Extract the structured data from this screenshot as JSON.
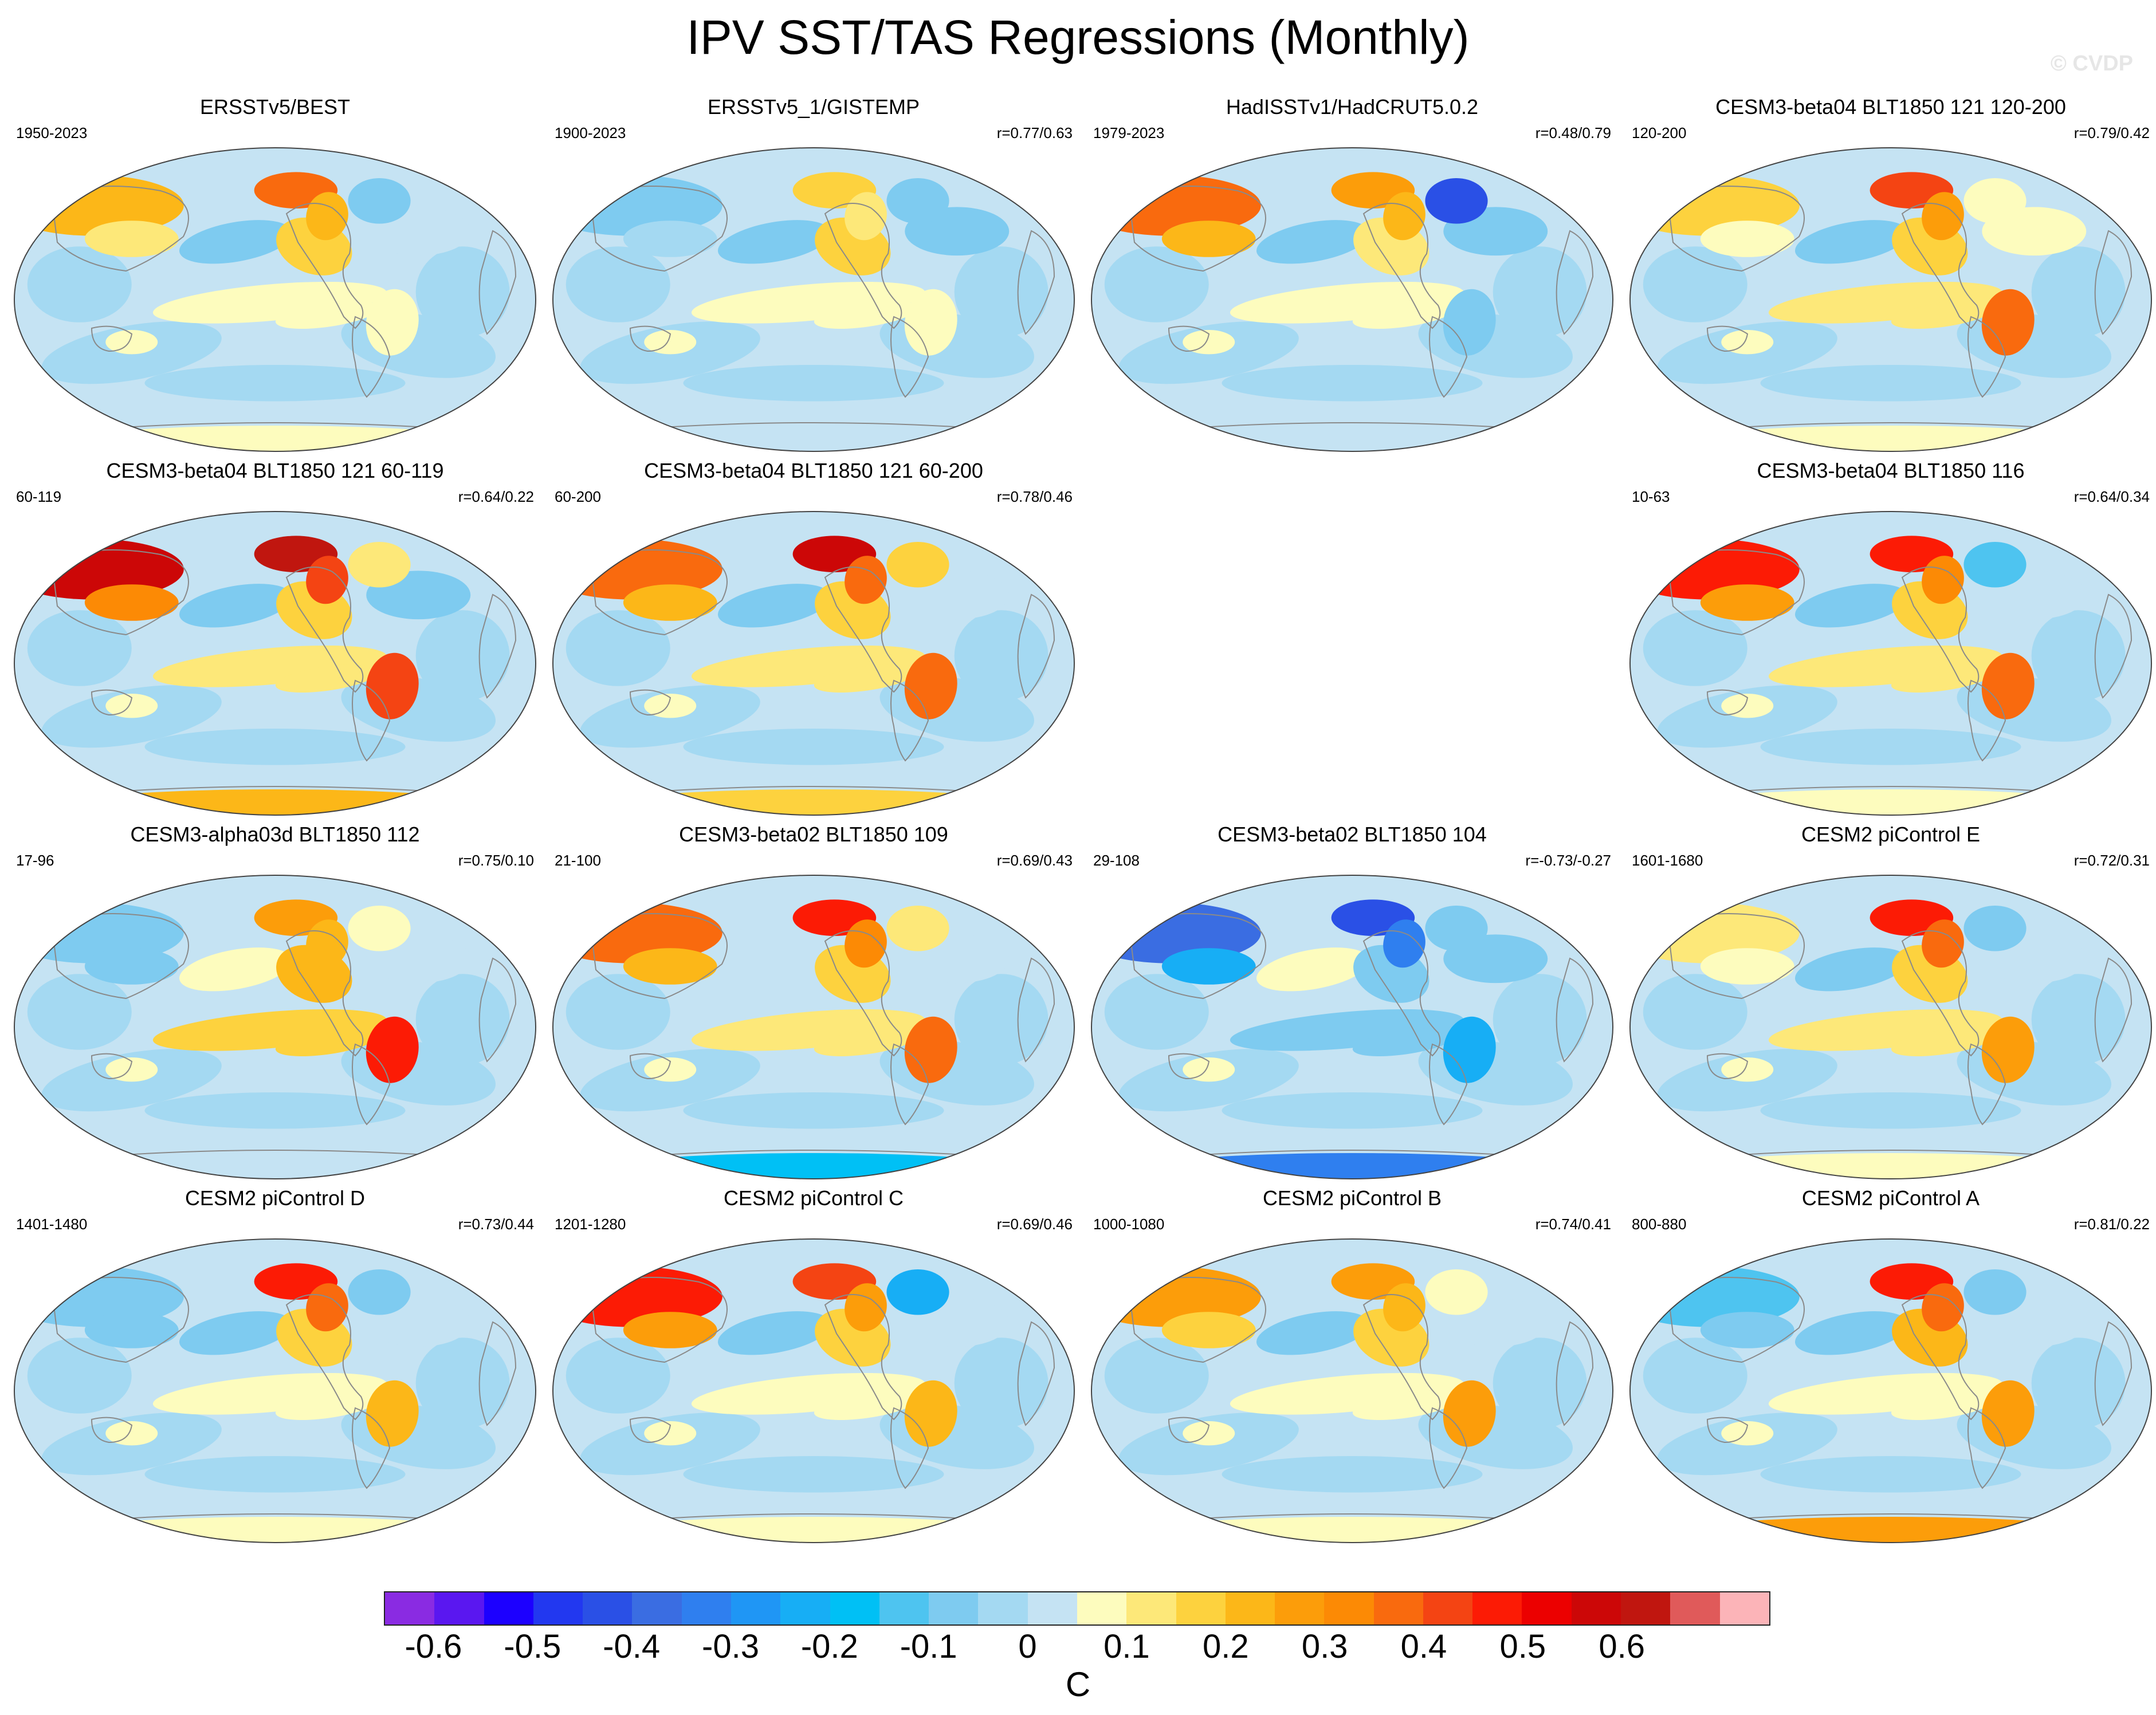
{
  "title": "IPV SST/TAS Regressions (Monthly)",
  "credit": "© CVDP",
  "chart_data": {
    "type": "heatmap",
    "description_unit": "C",
    "panels": [
      {
        "row": 0,
        "col": 0,
        "title": "ERSSTv5/BEST",
        "period": "1950-2023",
        "r": "",
        "pattern": {
          "ne_pacific": 0.15,
          "n_pacific_center": -0.05,
          "trop_pacific": 0.05,
          "n_atlantic": 0.0,
          "s_america": 0.05,
          "eurasia": 0.2,
          "n_america_w": 0.35,
          "n_america_e": -0.1,
          "antarctic": 0.05
        }
      },
      {
        "row": 0,
        "col": 1,
        "title": "ERSSTv5_1/GISTEMP",
        "period": "1900-2023",
        "r": "r=0.77/0.63",
        "pattern": {
          "ne_pacific": 0.15,
          "n_pacific_center": -0.1,
          "trop_pacific": 0.05,
          "n_atlantic": -0.05,
          "s_america": 0.05,
          "eurasia": -0.05,
          "n_america_w": 0.15,
          "n_america_e": -0.1,
          "antarctic": 0.0
        }
      },
      {
        "row": 0,
        "col": 2,
        "title": "HadISSTv1/HadCRUT5.0.2",
        "period": "1979-2023",
        "r": "r=0.48/0.79",
        "pattern": {
          "ne_pacific": 0.1,
          "n_pacific_center": -0.05,
          "trop_pacific": 0.05,
          "n_atlantic": -0.05,
          "s_america": -0.05,
          "eurasia": 0.35,
          "n_america_w": 0.3,
          "n_america_e": -0.45,
          "antarctic": 0.0
        }
      },
      {
        "row": 0,
        "col": 3,
        "title": "CESM3-beta04 BLT1850 121 120-200",
        "period": "120-200",
        "r": "r=0.79/0.42",
        "pattern": {
          "ne_pacific": 0.15,
          "n_pacific_center": -0.05,
          "trop_pacific": 0.1,
          "n_atlantic": 0.05,
          "s_america": 0.35,
          "eurasia": 0.15,
          "n_america_w": 0.4,
          "n_america_e": 0.05,
          "antarctic": 0.05
        }
      },
      {
        "row": 1,
        "col": 0,
        "title": "CESM3-beta04 BLT1850 121 60-119",
        "period": "60-119",
        "r": "r=0.64/0.22",
        "pattern": {
          "ne_pacific": 0.15,
          "n_pacific_center": -0.05,
          "trop_pacific": 0.1,
          "n_atlantic": -0.05,
          "s_america": 0.4,
          "eurasia": 0.55,
          "n_america_w": 0.6,
          "n_america_e": 0.1,
          "antarctic": 0.2
        }
      },
      {
        "row": 1,
        "col": 1,
        "title": "CESM3-beta04 BLT1850 121 60-200",
        "period": "60-200",
        "r": "r=0.78/0.46",
        "pattern": {
          "ne_pacific": 0.15,
          "n_pacific_center": -0.05,
          "trop_pacific": 0.1,
          "n_atlantic": 0.0,
          "s_america": 0.35,
          "eurasia": 0.35,
          "n_america_w": 0.55,
          "n_america_e": 0.15,
          "antarctic": 0.15
        }
      },
      {
        "row": 1,
        "col": 3,
        "title": "CESM3-beta04 BLT1850 116",
        "period": "10-63",
        "r": "r=0.64/0.34",
        "pattern": {
          "ne_pacific": 0.15,
          "n_pacific_center": -0.05,
          "trop_pacific": 0.1,
          "n_atlantic": 0.0,
          "s_america": 0.35,
          "eurasia": 0.45,
          "n_america_w": 0.45,
          "n_america_e": -0.15,
          "antarctic": 0.05
        }
      },
      {
        "row": 2,
        "col": 0,
        "title": "CESM3-alpha03d BLT1850 112",
        "period": "17-96",
        "r": "r=0.75/0.10",
        "pattern": {
          "ne_pacific": 0.2,
          "n_pacific_center": 0.05,
          "trop_pacific": 0.15,
          "n_atlantic": 0.0,
          "s_america": 0.45,
          "eurasia": -0.1,
          "n_america_w": 0.3,
          "n_america_e": 0.05,
          "antarctic": 0.0
        }
      },
      {
        "row": 2,
        "col": 1,
        "title": "CESM3-beta02 BLT1850 109",
        "period": "21-100",
        "r": "r=0.69/0.43",
        "pattern": {
          "ne_pacific": 0.15,
          "n_pacific_center": 0.0,
          "trop_pacific": 0.1,
          "n_atlantic": 0.0,
          "s_america": 0.35,
          "eurasia": 0.35,
          "n_america_w": 0.45,
          "n_america_e": 0.1,
          "antarctic": -0.2
        }
      },
      {
        "row": 2,
        "col": 2,
        "title": "CESM3-beta02 BLT1850 104",
        "period": "29-108",
        "r": "r=-0.73/-0.27",
        "pattern": {
          "ne_pacific": -0.1,
          "n_pacific_center": 0.05,
          "trop_pacific": -0.1,
          "n_atlantic": -0.05,
          "s_america": -0.25,
          "eurasia": -0.4,
          "n_america_w": -0.45,
          "n_america_e": -0.1,
          "antarctic": -0.35
        }
      },
      {
        "row": 2,
        "col": 3,
        "title": "CESM2 piControl E",
        "period": "1601-1680",
        "r": "r=0.72/0.31",
        "pattern": {
          "ne_pacific": 0.15,
          "n_pacific_center": -0.05,
          "trop_pacific": 0.1,
          "n_atlantic": 0.0,
          "s_america": 0.25,
          "eurasia": 0.1,
          "n_america_w": 0.5,
          "n_america_e": -0.1,
          "antarctic": 0.05
        }
      },
      {
        "row": 3,
        "col": 0,
        "title": "CESM2 piControl D",
        "period": "1401-1480",
        "r": "r=0.73/0.44",
        "pattern": {
          "ne_pacific": 0.15,
          "n_pacific_center": -0.05,
          "trop_pacific": 0.05,
          "n_atlantic": 0.0,
          "s_america": 0.2,
          "eurasia": -0.1,
          "n_america_w": 0.5,
          "n_america_e": -0.1,
          "antarctic": 0.05
        }
      },
      {
        "row": 3,
        "col": 1,
        "title": "CESM2 piControl C",
        "period": "1201-1280",
        "r": "r=0.69/0.46",
        "pattern": {
          "ne_pacific": 0.15,
          "n_pacific_center": -0.05,
          "trop_pacific": 0.05,
          "n_atlantic": 0.0,
          "s_america": 0.2,
          "eurasia": 0.45,
          "n_america_w": 0.4,
          "n_america_e": -0.25,
          "antarctic": 0.05
        }
      },
      {
        "row": 3,
        "col": 2,
        "title": "CESM2 piControl B",
        "period": "1000-1080",
        "r": "r=0.74/0.41",
        "pattern": {
          "ne_pacific": 0.15,
          "n_pacific_center": -0.05,
          "trop_pacific": 0.05,
          "n_atlantic": 0.0,
          "s_america": 0.25,
          "eurasia": 0.3,
          "n_america_w": 0.3,
          "n_america_e": 0.05,
          "antarctic": 0.05
        }
      },
      {
        "row": 3,
        "col": 3,
        "title": "CESM2 piControl A",
        "period": "800-880",
        "r": "r=0.81/0.22",
        "pattern": {
          "ne_pacific": 0.2,
          "n_pacific_center": -0.05,
          "trop_pacific": 0.05,
          "n_atlantic": 0.0,
          "s_america": 0.25,
          "eurasia": -0.15,
          "n_america_w": 0.5,
          "n_america_e": -0.1,
          "antarctic": 0.25
        }
      }
    ],
    "colorbar": {
      "label": "C",
      "ticks": [
        "-0.6",
        "-0.5",
        "-0.4",
        "-0.3",
        "-0.2",
        "-0.1",
        "0",
        "0.1",
        "0.2",
        "0.3",
        "0.4",
        "0.5",
        "0.6"
      ],
      "tick_values": [
        -0.6,
        -0.5,
        -0.4,
        -0.3,
        -0.2,
        -0.1,
        0,
        0.1,
        0.2,
        0.3,
        0.4,
        0.5,
        0.6
      ],
      "min": -0.65,
      "step": 0.05,
      "colors": [
        "#8a2be2",
        "#5a17f0",
        "#1c00ff",
        "#2238f0",
        "#2a50e6",
        "#3a6de2",
        "#2f7fef",
        "#1f96f5",
        "#17aef5",
        "#00c0f5",
        "#4ec4f0",
        "#7ecbf0",
        "#a4d9f2",
        "#c5e3f3",
        "#fdfcbe",
        "#fde879",
        "#fdd23e",
        "#fcb718",
        "#fc9d0a",
        "#fc8a05",
        "#f96a0e",
        "#f44413",
        "#fc1b05",
        "#ec0000",
        "#cc0707",
        "#c0160f",
        "#e05a5a",
        "#fcb4b8"
      ]
    }
  }
}
